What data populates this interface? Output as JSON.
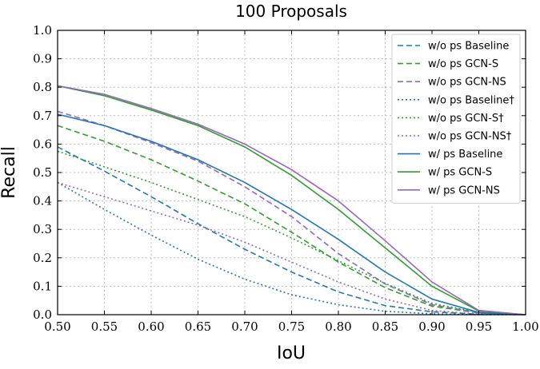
{
  "chart_data": {
    "type": "line",
    "title": "100 Proposals",
    "xlabel": "IoU",
    "ylabel": "Recall",
    "xlim": [
      0.5,
      1.0
    ],
    "ylim": [
      0.0,
      1.0
    ],
    "x_ticks": [
      "0.50",
      "0.55",
      "0.60",
      "0.65",
      "0.70",
      "0.75",
      "0.80",
      "0.85",
      "0.90",
      "0.95",
      "1.00"
    ],
    "y_ticks": [
      "0.0",
      "0.1",
      "0.2",
      "0.3",
      "0.4",
      "0.5",
      "0.6",
      "0.7",
      "0.8",
      "0.9",
      "1.0"
    ],
    "grid": true,
    "legend_position": "top-right",
    "x": [
      0.5,
      0.55,
      0.6,
      0.65,
      0.7,
      0.75,
      0.8,
      0.85,
      0.9,
      0.95,
      1.0
    ],
    "series": [
      {
        "name": "w/o ps Baseline",
        "style": "dashed",
        "color": "#1f77b4",
        "values": [
          0.59,
          0.505,
          0.415,
          0.32,
          0.23,
          0.15,
          0.08,
          0.032,
          0.01,
          0.002,
          0.0
        ]
      },
      {
        "name": "w/o ps GCN-S",
        "style": "dashed",
        "color": "#2ca02c",
        "values": [
          0.665,
          0.61,
          0.545,
          0.47,
          0.39,
          0.29,
          0.185,
          0.095,
          0.03,
          0.006,
          0.0
        ]
      },
      {
        "name": "w/o ps GCN-NS",
        "style": "dashed",
        "color": "#9467bd",
        "values": [
          0.715,
          0.665,
          0.605,
          0.54,
          0.45,
          0.345,
          0.215,
          0.108,
          0.035,
          0.007,
          0.0
        ]
      },
      {
        "name": "w/o ps Baseline†",
        "style": "dotted",
        "color": "#1f77b4",
        "values": [
          0.465,
          0.37,
          0.28,
          0.195,
          0.125,
          0.07,
          0.035,
          0.012,
          0.003,
          0.0,
          0.0
        ]
      },
      {
        "name": "w/o ps GCN-S†",
        "style": "dotted",
        "color": "#2ca02c",
        "values": [
          0.575,
          0.52,
          0.465,
          0.405,
          0.345,
          0.27,
          0.19,
          0.11,
          0.04,
          0.008,
          0.0
        ]
      },
      {
        "name": "w/o ps GCN-NS†",
        "style": "dotted",
        "color": "#9467bd",
        "values": [
          0.465,
          0.415,
          0.365,
          0.315,
          0.255,
          0.185,
          0.115,
          0.055,
          0.015,
          0.002,
          0.0
        ]
      },
      {
        "name": "w/ ps Baseline",
        "style": "solid",
        "color": "#1f77b4",
        "values": [
          0.705,
          0.665,
          0.61,
          0.545,
          0.465,
          0.37,
          0.265,
          0.15,
          0.055,
          0.008,
          0.0
        ]
      },
      {
        "name": "w/ ps GCN-S",
        "style": "solid",
        "color": "#2ca02c",
        "values": [
          0.805,
          0.77,
          0.72,
          0.665,
          0.59,
          0.49,
          0.37,
          0.235,
          0.1,
          0.013,
          0.0
        ]
      },
      {
        "name": "w/ ps GCN-NS",
        "style": "solid",
        "color": "#9467bd",
        "values": [
          0.805,
          0.775,
          0.725,
          0.67,
          0.6,
          0.51,
          0.4,
          0.26,
          0.115,
          0.015,
          0.0
        ]
      }
    ]
  }
}
